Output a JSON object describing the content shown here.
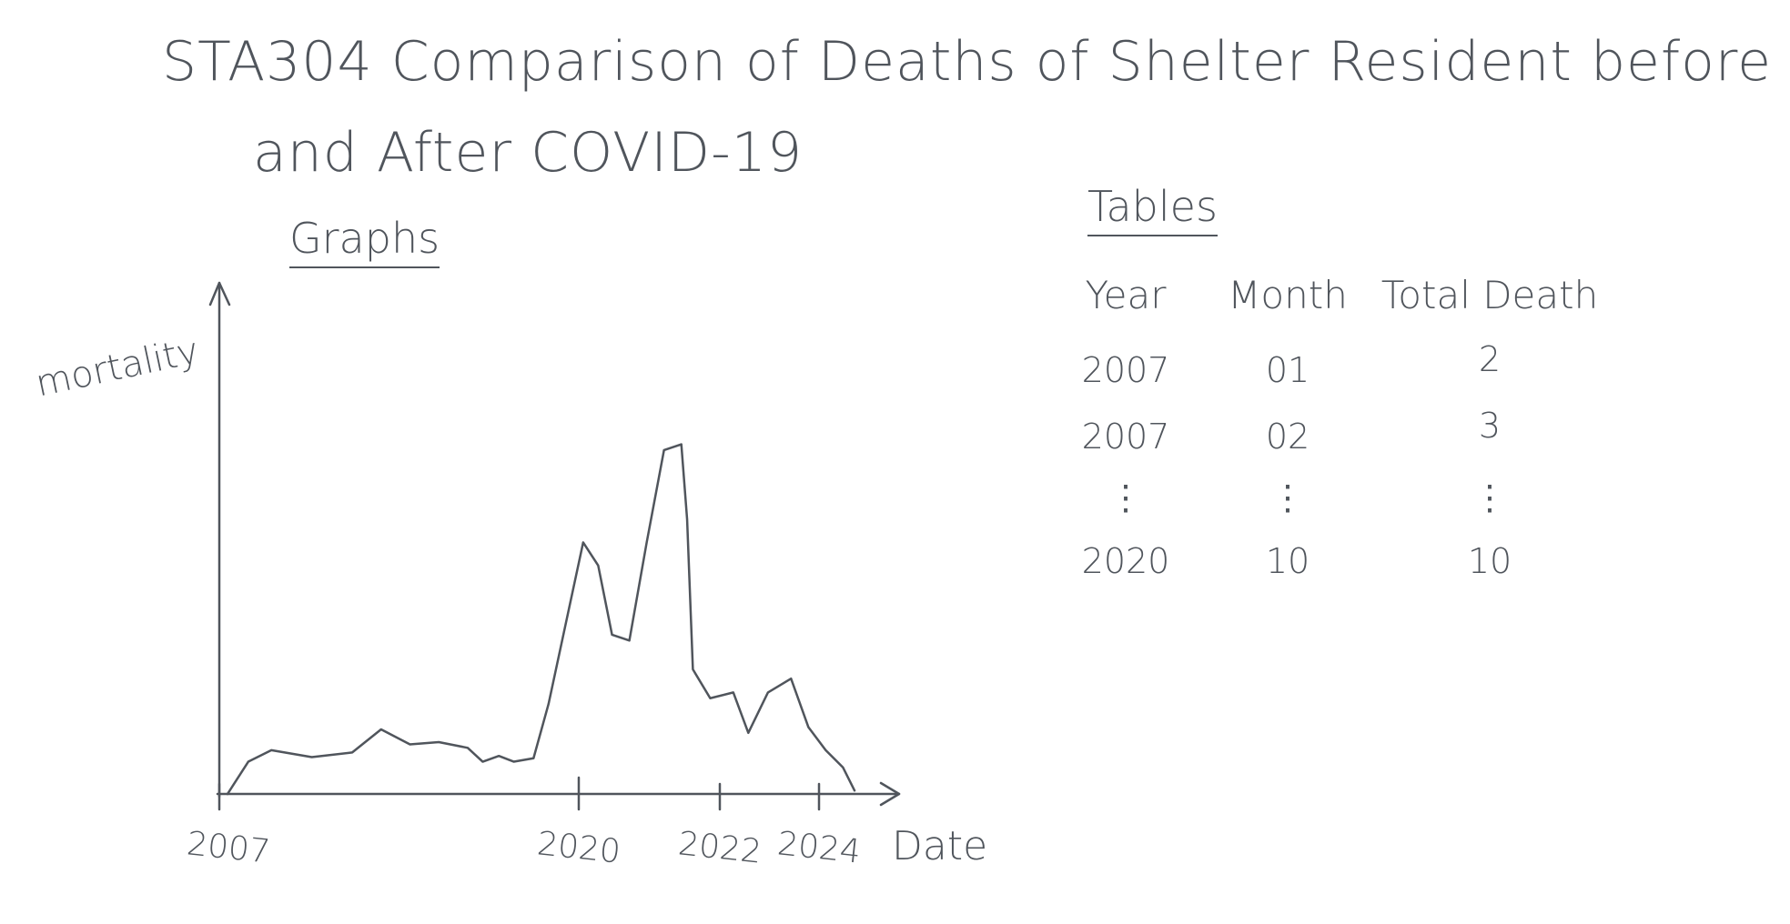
{
  "title": "STA304 Comparison of Deaths of Shelter Resident before and After COVID-19",
  "graph": {
    "heading": "Graphs",
    "y_label": "mortality",
    "x_label": "Date",
    "x_ticks": [
      "2007",
      "2020",
      "2022",
      "2024"
    ]
  },
  "table": {
    "heading": "Tables",
    "columns": [
      "Year",
      "Month",
      "Total Death"
    ],
    "rows": [
      [
        "2007",
        "01",
        "2"
      ],
      [
        "2007",
        "02",
        "3"
      ],
      [
        "⋮",
        "⋮",
        "⋮"
      ],
      [
        "2020",
        "10",
        "10"
      ]
    ]
  }
}
